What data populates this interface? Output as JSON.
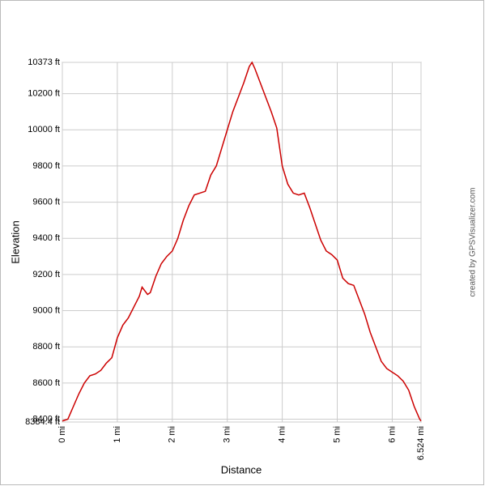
{
  "chart_data": {
    "type": "line",
    "xlabel": "Distance",
    "ylabel": "Elevation",
    "credit": "created by GPSVisualizer.com",
    "grid": true,
    "xlim": [
      0,
      6.524
    ],
    "ylim": [
      8384.4,
      10373
    ],
    "xticks": [
      {
        "value": 0,
        "label": "0 mi"
      },
      {
        "value": 1,
        "label": "1 mi"
      },
      {
        "value": 2,
        "label": "2 mi"
      },
      {
        "value": 3,
        "label": "3 mi"
      },
      {
        "value": 4,
        "label": "4 mi"
      },
      {
        "value": 5,
        "label": "5 mi"
      },
      {
        "value": 6,
        "label": "6 mi"
      },
      {
        "value": 6.524,
        "label": "6.524 mi"
      }
    ],
    "yticks": [
      {
        "value": 8384.4,
        "label": "8384.4 ft"
      },
      {
        "value": 8400,
        "label": "8400 ft"
      },
      {
        "value": 8600,
        "label": "8600 ft"
      },
      {
        "value": 8800,
        "label": "8800 ft"
      },
      {
        "value": 9000,
        "label": "9000 ft"
      },
      {
        "value": 9200,
        "label": "9200 ft"
      },
      {
        "value": 9400,
        "label": "9400 ft"
      },
      {
        "value": 9600,
        "label": "9600 ft"
      },
      {
        "value": 9800,
        "label": "9800 ft"
      },
      {
        "value": 10000,
        "label": "10000 ft"
      },
      {
        "value": 10200,
        "label": "10200 ft"
      },
      {
        "value": 10373,
        "label": "10373 ft"
      }
    ],
    "x": [
      0,
      0.1,
      0.2,
      0.3,
      0.4,
      0.5,
      0.6,
      0.7,
      0.8,
      0.9,
      1.0,
      1.1,
      1.2,
      1.3,
      1.4,
      1.45,
      1.55,
      1.6,
      1.7,
      1.8,
      1.9,
      2.0,
      2.1,
      2.2,
      2.3,
      2.4,
      2.5,
      2.6,
      2.7,
      2.8,
      2.9,
      3.0,
      3.1,
      3.2,
      3.3,
      3.4,
      3.45,
      3.5,
      3.6,
      3.7,
      3.8,
      3.9,
      4.0,
      4.1,
      4.2,
      4.3,
      4.4,
      4.5,
      4.6,
      4.7,
      4.8,
      4.9,
      5.0,
      5.1,
      5.2,
      5.3,
      5.4,
      5.5,
      5.6,
      5.7,
      5.8,
      5.9,
      6.0,
      6.1,
      6.2,
      6.3,
      6.4,
      6.5,
      6.524
    ],
    "series": [
      {
        "color": "#cc0000",
        "values": [
          8390,
          8400,
          8470,
          8540,
          8600,
          8640,
          8650,
          8670,
          8710,
          8740,
          8850,
          8920,
          8960,
          9020,
          9080,
          9130,
          9090,
          9100,
          9190,
          9260,
          9300,
          9330,
          9400,
          9500,
          9580,
          9640,
          9650,
          9660,
          9750,
          9800,
          9900,
          10000,
          10100,
          10180,
          10260,
          10350,
          10373,
          10340,
          10260,
          10180,
          10100,
          10010,
          9800,
          9700,
          9650,
          9640,
          9650,
          9570,
          9480,
          9390,
          9330,
          9310,
          9280,
          9180,
          9150,
          9140,
          9060,
          8980,
          8880,
          8800,
          8720,
          8680,
          8660,
          8640,
          8610,
          8560,
          8470,
          8400,
          8390
        ]
      }
    ]
  }
}
